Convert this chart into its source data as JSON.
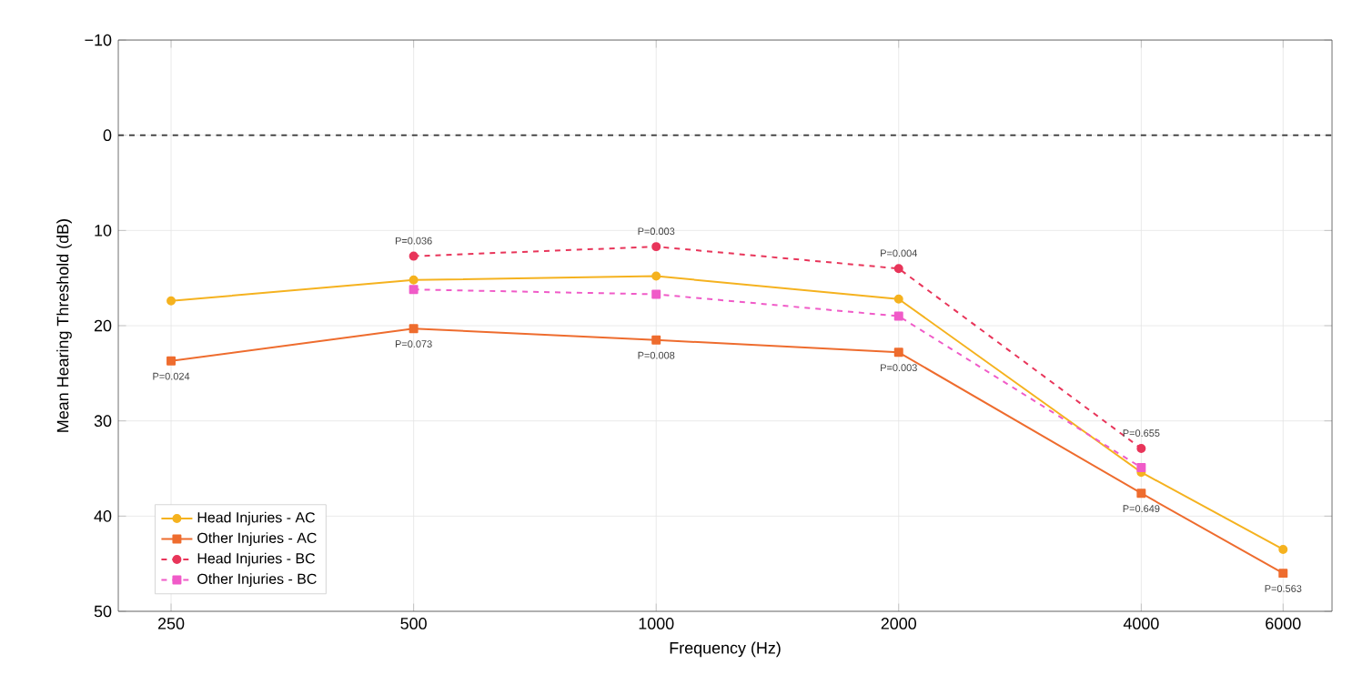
{
  "chart_data": {
    "type": "line",
    "xlabel": "Frequency (Hz)",
    "ylabel": "Mean Hearing Threshold (dB)",
    "x": [
      250,
      500,
      1000,
      2000,
      4000,
      6000
    ],
    "log": "x",
    "xlim": [
      215,
      6900
    ],
    "xticks": [
      250,
      500,
      1000,
      2000,
      4000,
      6000
    ],
    "ylim": [
      50,
      -10
    ],
    "yticks": [
      {
        "value": -10,
        "label": "−10"
      },
      0,
      10,
      20,
      30,
      40,
      50
    ],
    "grid": true,
    "legend": "bottom left",
    "series": [
      {
        "name": "Head Injuries - AC",
        "color": "#f5b21f",
        "marker": "circle",
        "line_style": "solid",
        "values": [
          17.4,
          15.2,
          14.8,
          17.2,
          35.4,
          43.5
        ]
      },
      {
        "name": "Other Injuries - AC",
        "color": "#ee6c2e",
        "marker": "square",
        "line_style": "solid",
        "values": [
          23.7,
          20.3,
          21.5,
          22.8,
          37.6,
          46.0
        ]
      },
      {
        "name": "Head Injuries - BC",
        "color": "#e8355a",
        "marker": "circle",
        "line_style": "dashed",
        "values": [
          null,
          12.7,
          11.7,
          14.0,
          32.9,
          null
        ]
      },
      {
        "name": "Other Injuries - BC",
        "color": "#f05bc8",
        "marker": "square",
        "line_style": "dashed",
        "values": [
          null,
          16.2,
          16.7,
          19.0,
          34.9,
          null
        ]
      }
    ],
    "ref_lines": [
      {
        "axis": "y",
        "value": 0,
        "color": "#333333",
        "line_style": "dashed"
      }
    ],
    "annotations": [
      {
        "text": "P=0.024",
        "x": 250,
        "y": 23.7
      },
      {
        "text": "P=0.036",
        "x": 500,
        "y": 12.7
      },
      {
        "text": "P=0.073",
        "x": 500,
        "y": 20.3
      },
      {
        "text": "P=0.003",
        "x": 1000,
        "y": 11.7
      },
      {
        "text": "P=0.008",
        "x": 1000,
        "y": 21.5
      },
      {
        "text": "P=0.004",
        "x": 2000,
        "y": 14.0
      },
      {
        "text": "P=0.003",
        "x": 2000,
        "y": 22.8
      },
      {
        "text": "P=0.655",
        "x": 4000,
        "y": 32.9
      },
      {
        "text": "P=0.649",
        "x": 4000,
        "y": 37.6
      },
      {
        "text": "P=0.563",
        "x": 6000,
        "y": 46.0
      }
    ]
  }
}
